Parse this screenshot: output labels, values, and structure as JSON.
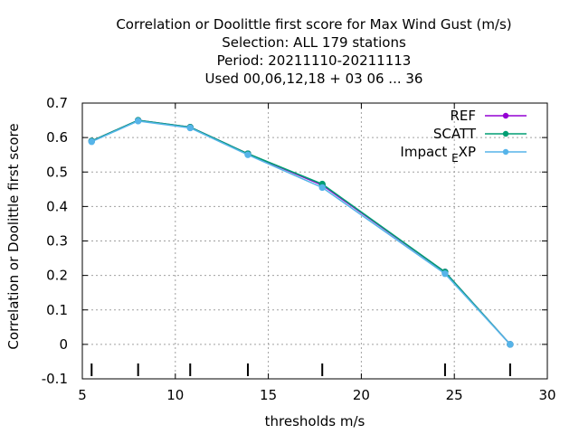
{
  "chart_data": {
    "type": "line",
    "title_lines": [
      "Correlation or Doolittle first score  for Max Wind Gust (m/s)",
      "Selection: ALL    179 stations",
      "Period: 20211110-20211113",
      "Used  00,06,12,18 + 03 06 ... 36"
    ],
    "xlabel": "thresholds m/s",
    "ylabel": "Correlation or Doolittle first score",
    "xlim": [
      5,
      30
    ],
    "ylim": [
      -0.1,
      0.7
    ],
    "xticks": [
      5,
      10,
      15,
      20,
      25,
      30
    ],
    "yticks": [
      -0.1,
      0,
      0.1,
      0.2,
      0.3,
      0.4,
      0.5,
      0.6,
      0.7
    ],
    "ytick_labels": [
      "-0.1",
      "0",
      "0.1",
      "0.2",
      "0.3",
      "0.4",
      "0.5",
      "0.6",
      "0.7"
    ],
    "grid": true,
    "legend_position": "top-right",
    "threshold_marks": [
      5.5,
      8,
      10.8,
      13.9,
      17.9,
      24.5,
      28
    ],
    "series": [
      {
        "name": "REF",
        "color": "#9400d3",
        "x": [
          5.5,
          8,
          10.8,
          13.9,
          17.9,
          24.5,
          28
        ],
        "y": [
          0.59,
          0.65,
          0.63,
          0.553,
          0.462,
          0.21,
          0.0
        ]
      },
      {
        "name": "SCATT",
        "color": "#009e73",
        "x": [
          5.5,
          8,
          10.8,
          13.9,
          17.9,
          24.5,
          28
        ],
        "y": [
          0.59,
          0.65,
          0.63,
          0.553,
          0.465,
          0.21,
          0.0
        ]
      },
      {
        "name": "Impact",
        "name_sub": "E",
        "name_tail": "XP",
        "color": "#56b4e9",
        "x": [
          5.5,
          8,
          10.8,
          13.9,
          17.9,
          24.5,
          28
        ],
        "y": [
          0.588,
          0.648,
          0.628,
          0.55,
          0.455,
          0.205,
          0.0
        ]
      }
    ]
  }
}
